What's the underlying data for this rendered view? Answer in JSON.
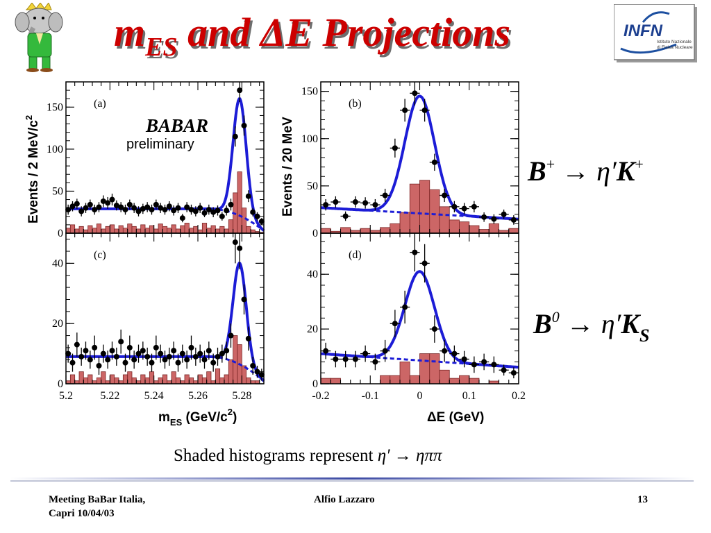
{
  "slide": {
    "title_m": "m",
    "title_sub": "ES",
    "title_rest": " and ΔE Projections",
    "caption_text": "Shaded histograms represent ",
    "caption_formula": "η′ → ηππ"
  },
  "logo": {
    "name": "INFN",
    "line1": "Istituto Nazionale",
    "line2": "di Fisica Nucleare"
  },
  "footer": {
    "left_line1": "Meeting BaBar Italia,",
    "left_line2": "Capri 10/04/03",
    "center": "Alfio Lazzaro",
    "page": "13"
  },
  "labels": {
    "babar": "BABAR",
    "preliminary": "preliminary",
    "ylabel_top_left": "Events / 2 MeV/c",
    "ylabel_top_left_sup": "2",
    "ylabel_top_right": "Events / 20 MeV",
    "xlabel_left_main": "m",
    "xlabel_left_sub": "ES",
    "xlabel_left_unit": " (GeV/c",
    "xlabel_left_sup": "2",
    "xlabel_left_close": ")",
    "xlabel_right": "ΔE (GeV)",
    "decay_top_B": "B",
    "decay_top_sup": "+",
    "decay_top_arrow": " → η′",
    "decay_top_K": "K",
    "decay_top_Ksup": "+",
    "decay_bottom_B": "B",
    "decay_bottom_sup": "0",
    "decay_bottom_arrow": " → η′",
    "decay_bottom_K": "K",
    "decay_bottom_Ksub": "S"
  },
  "colors": {
    "fit_line": "#1c1cd6",
    "histogram_fill": "#cc6666",
    "histogram_edge": "#7a2424",
    "title": "#cc0000"
  },
  "chart_data": [
    {
      "type": "scatter",
      "panel": "(a)",
      "xlim": [
        5.2,
        5.29
      ],
      "ylim": [
        0,
        180
      ],
      "yticks": [
        0,
        50,
        100,
        150
      ],
      "xticks": [],
      "fit": {
        "type": "crystal-ball+argus",
        "peak_x": 5.279,
        "peak_y": 160,
        "sigma": 0.003,
        "background_level": 29
      },
      "points": {
        "x": [
          5.201,
          5.203,
          5.205,
          5.207,
          5.209,
          5.211,
          5.213,
          5.215,
          5.217,
          5.219,
          5.221,
          5.223,
          5.225,
          5.227,
          5.229,
          5.231,
          5.233,
          5.235,
          5.237,
          5.239,
          5.241,
          5.243,
          5.245,
          5.247,
          5.249,
          5.251,
          5.253,
          5.255,
          5.257,
          5.259,
          5.261,
          5.263,
          5.265,
          5.267,
          5.269,
          5.271,
          5.273,
          5.275,
          5.277,
          5.279,
          5.281,
          5.283,
          5.285,
          5.287,
          5.289
        ],
        "y": [
          28,
          32,
          35,
          26,
          30,
          34,
          28,
          31,
          38,
          36,
          40,
          33,
          31,
          28,
          34,
          30,
          26,
          29,
          31,
          28,
          34,
          30,
          28,
          32,
          27,
          30,
          18,
          31,
          28,
          26,
          30,
          24,
          28,
          25,
          27,
          20,
          27,
          34,
          115,
          170,
          128,
          44,
          25,
          20,
          14
        ],
        "err": [
          6,
          6,
          6,
          6,
          6,
          6,
          6,
          6,
          7,
          7,
          7,
          6,
          6,
          6,
          6,
          6,
          6,
          6,
          6,
          6,
          6,
          6,
          6,
          6,
          6,
          6,
          5,
          6,
          6,
          6,
          6,
          5,
          6,
          6,
          6,
          5,
          6,
          7,
          12,
          14,
          12,
          7,
          5,
          5,
          4
        ]
      },
      "histogram": {
        "edges": [
          5.2,
          5.202,
          5.204,
          5.206,
          5.208,
          5.21,
          5.212,
          5.214,
          5.216,
          5.218,
          5.22,
          5.222,
          5.224,
          5.226,
          5.228,
          5.23,
          5.232,
          5.234,
          5.236,
          5.238,
          5.24,
          5.242,
          5.244,
          5.246,
          5.248,
          5.25,
          5.252,
          5.254,
          5.256,
          5.258,
          5.26,
          5.262,
          5.264,
          5.266,
          5.268,
          5.27,
          5.272,
          5.274,
          5.276,
          5.278,
          5.28,
          5.282,
          5.284,
          5.286,
          5.288,
          5.29
        ],
        "values": [
          6,
          10,
          5,
          8,
          4,
          9,
          6,
          11,
          5,
          8,
          10,
          5,
          9,
          6,
          11,
          8,
          5,
          10,
          6,
          9,
          5,
          11,
          8,
          6,
          10,
          5,
          9,
          12,
          6,
          8,
          4,
          12,
          6,
          9,
          5,
          8,
          5,
          16,
          48,
          73,
          30,
          8,
          4,
          2,
          1
        ]
      }
    },
    {
      "type": "scatter",
      "panel": "(b)",
      "xlim": [
        -0.2,
        0.2
      ],
      "ylim": [
        0,
        160
      ],
      "yticks": [
        0,
        50,
        100,
        150
      ],
      "xticks": [],
      "fit": {
        "type": "gaussian+linear",
        "peak_x": 0.0,
        "peak_y": 145,
        "sigma": 0.03,
        "background_level": 27
      },
      "points": {
        "x": [
          -0.19,
          -0.17,
          -0.15,
          -0.13,
          -0.11,
          -0.09,
          -0.07,
          -0.05,
          -0.03,
          -0.01,
          0.01,
          0.03,
          0.05,
          0.07,
          0.09,
          0.11,
          0.13,
          0.15,
          0.17,
          0.19
        ],
        "y": [
          30,
          33,
          18,
          33,
          32,
          30,
          40,
          90,
          130,
          148,
          130,
          75,
          40,
          28,
          26,
          28,
          17,
          15,
          20,
          14
        ],
        "err": [
          6,
          6,
          5,
          6,
          6,
          6,
          7,
          10,
          12,
          13,
          12,
          9,
          7,
          6,
          6,
          6,
          5,
          5,
          5,
          5
        ]
      },
      "histogram": {
        "edges": [
          -0.2,
          -0.18,
          -0.16,
          -0.14,
          -0.12,
          -0.1,
          -0.08,
          -0.06,
          -0.04,
          -0.02,
          0.0,
          0.02,
          0.04,
          0.06,
          0.08,
          0.1,
          0.12,
          0.14,
          0.16,
          0.18,
          0.2
        ],
        "values": [
          5,
          2,
          6,
          3,
          5,
          3,
          6,
          10,
          22,
          52,
          56,
          46,
          28,
          14,
          12,
          8,
          4,
          10,
          3,
          5
        ]
      }
    },
    {
      "type": "scatter",
      "panel": "(c)",
      "xlim": [
        5.2,
        5.29
      ],
      "ylim": [
        0,
        50
      ],
      "yticks": [
        0,
        20,
        40
      ],
      "xticks": [
        5.2,
        5.22,
        5.24,
        5.26,
        5.28
      ],
      "fit": {
        "type": "crystal-ball+argus",
        "peak_x": 5.279,
        "peak_y": 40,
        "sigma": 0.003,
        "background_level": 9
      },
      "points": {
        "x": [
          5.201,
          5.203,
          5.205,
          5.207,
          5.209,
          5.211,
          5.213,
          5.215,
          5.217,
          5.219,
          5.221,
          5.223,
          5.225,
          5.227,
          5.229,
          5.231,
          5.233,
          5.235,
          5.237,
          5.239,
          5.241,
          5.243,
          5.245,
          5.247,
          5.249,
          5.251,
          5.253,
          5.255,
          5.257,
          5.259,
          5.261,
          5.263,
          5.265,
          5.267,
          5.269,
          5.271,
          5.273,
          5.275,
          5.277,
          5.279,
          5.281,
          5.283,
          5.285,
          5.287,
          5.289
        ],
        "y": [
          10,
          7,
          13,
          9,
          11,
          8,
          12,
          6,
          10,
          8,
          11,
          9,
          14,
          7,
          12,
          8,
          10,
          11,
          9,
          7,
          12,
          10,
          8,
          9,
          11,
          7,
          10,
          8,
          12,
          9,
          10,
          8,
          11,
          7,
          9,
          10,
          11,
          16,
          47,
          45,
          28,
          15,
          6,
          4,
          3
        ],
        "err": [
          3,
          3,
          4,
          3,
          3,
          3,
          4,
          3,
          3,
          3,
          3,
          3,
          4,
          3,
          4,
          3,
          3,
          3,
          3,
          3,
          4,
          3,
          3,
          3,
          3,
          3,
          3,
          3,
          4,
          3,
          3,
          3,
          3,
          3,
          3,
          3,
          3,
          4,
          7,
          7,
          5,
          4,
          3,
          2,
          2
        ]
      },
      "histogram": {
        "edges": [
          5.2,
          5.202,
          5.204,
          5.206,
          5.208,
          5.21,
          5.212,
          5.214,
          5.216,
          5.218,
          5.22,
          5.222,
          5.224,
          5.226,
          5.228,
          5.23,
          5.232,
          5.234,
          5.236,
          5.238,
          5.24,
          5.242,
          5.244,
          5.246,
          5.248,
          5.25,
          5.252,
          5.254,
          5.256,
          5.258,
          5.26,
          5.262,
          5.264,
          5.266,
          5.268,
          5.27,
          5.272,
          5.274,
          5.276,
          5.278,
          5.28,
          5.282,
          5.284,
          5.286,
          5.288,
          5.29
        ],
        "values": [
          1,
          3,
          1,
          4,
          2,
          3,
          1,
          2,
          4,
          1,
          3,
          2,
          1,
          3,
          4,
          2,
          1,
          3,
          2,
          4,
          1,
          2,
          3,
          1,
          4,
          2,
          1,
          3,
          2,
          1,
          3,
          2,
          4,
          1,
          5,
          2,
          3,
          8,
          16,
          13,
          6,
          2,
          1,
          1,
          0
        ]
      }
    },
    {
      "type": "scatter",
      "panel": "(d)",
      "xlim": [
        -0.2,
        0.2
      ],
      "ylim": [
        0,
        55
      ],
      "yticks": [
        0,
        20,
        40
      ],
      "xticks": [
        -0.2,
        -0.1,
        0,
        0.1,
        0.2
      ],
      "fit": {
        "type": "gaussian+linear",
        "peak_x": 0.0,
        "peak_y": 41,
        "sigma": 0.03,
        "background_level": 11
      },
      "points": {
        "x": [
          -0.19,
          -0.17,
          -0.15,
          -0.13,
          -0.11,
          -0.09,
          -0.07,
          -0.05,
          -0.03,
          -0.01,
          0.01,
          0.03,
          0.05,
          0.07,
          0.09,
          0.11,
          0.13,
          0.15,
          0.17,
          0.19
        ],
        "y": [
          12,
          9,
          9,
          9,
          11,
          8,
          12,
          22,
          28,
          48,
          44,
          20,
          12,
          11,
          9,
          7,
          8,
          7,
          5,
          4
        ],
        "err": [
          3,
          3,
          3,
          3,
          3,
          3,
          4,
          5,
          6,
          7,
          7,
          5,
          4,
          3,
          3,
          3,
          3,
          3,
          2,
          2
        ]
      },
      "histogram": {
        "edges": [
          -0.2,
          -0.18,
          -0.16,
          -0.14,
          -0.12,
          -0.1,
          -0.08,
          -0.06,
          -0.04,
          -0.02,
          0.0,
          0.02,
          0.04,
          0.06,
          0.08,
          0.1,
          0.12,
          0.14,
          0.16,
          0.18,
          0.2
        ],
        "values": [
          2,
          2,
          0,
          0,
          0,
          0,
          3,
          3,
          8,
          3,
          11,
          11,
          5,
          2,
          3,
          2,
          0,
          1,
          0,
          0
        ]
      }
    }
  ]
}
